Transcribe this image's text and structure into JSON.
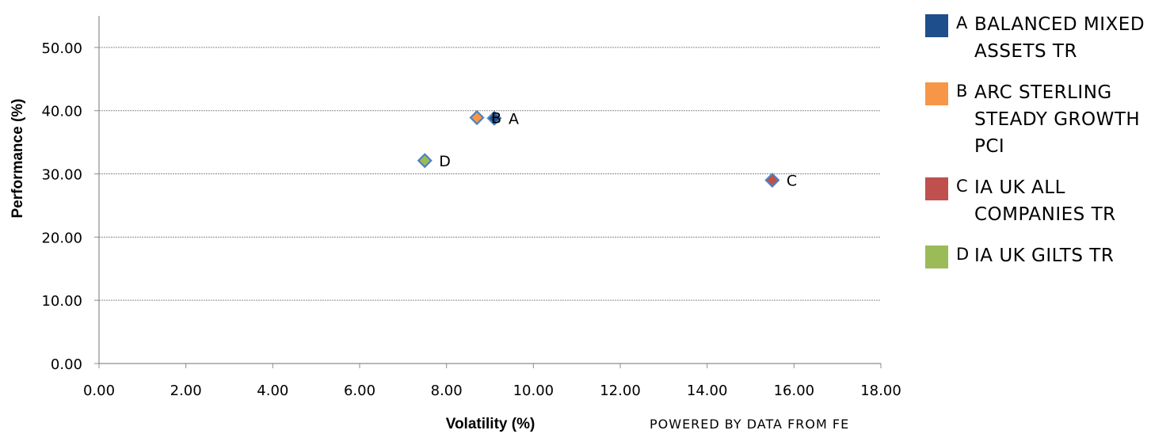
{
  "chart_data": {
    "type": "scatter",
    "xlabel": "Volatility (%)",
    "ylabel": "Performance (%)",
    "xlim": [
      0,
      18
    ],
    "ylim": [
      0,
      55
    ],
    "x_ticks": [
      "0.00",
      "2.00",
      "4.00",
      "6.00",
      "8.00",
      "10.00",
      "12.00",
      "14.00",
      "16.00",
      "18.00"
    ],
    "y_ticks": [
      "0.00",
      "10.00",
      "20.00",
      "30.00",
      "40.00",
      "50.00"
    ],
    "grid": "horizontal dashed",
    "legend_position": "right",
    "series": [
      {
        "letter": "A",
        "name": "BALANCED MIXED ASSETS TR",
        "x": 9.1,
        "y": 38.8,
        "color": "#1F4E8C"
      },
      {
        "letter": "B",
        "name": "ARC STERLING STEADY GROWTH PCI",
        "x": 8.7,
        "y": 38.9,
        "color": "#F79646"
      },
      {
        "letter": "C",
        "name": "IA UK ALL COMPANIES TR",
        "x": 15.5,
        "y": 29.0,
        "color": "#C0504D"
      },
      {
        "letter": "D",
        "name": "IA UK GILTS TR",
        "x": 7.5,
        "y": 32.1,
        "color": "#9BBB59"
      }
    ],
    "marker_outline": "#4F81BD"
  },
  "footer": {
    "source": "POWERED BY DATA FROM FE"
  }
}
